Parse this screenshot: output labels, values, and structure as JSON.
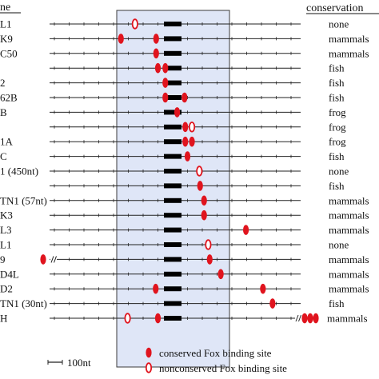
{
  "header": {
    "gene_label": "ne",
    "conservation_label": "conservation"
  },
  "rows": [
    {
      "gene": "L1",
      "conservation": "none",
      "sites": [
        {
          "pos": -2.55,
          "conserved": false
        }
      ]
    },
    {
      "gene": "K9",
      "conservation": "mammals",
      "sites": [
        {
          "pos": -3.5,
          "conserved": true
        },
        {
          "pos": -1.12,
          "conserved": true
        }
      ]
    },
    {
      "gene": "C50",
      "conservation": "mammals",
      "sites": [
        {
          "pos": -1.12,
          "conserved": true
        }
      ]
    },
    {
      "gene": "",
      "conservation": "fish",
      "sites": [
        {
          "pos": -1.0,
          "conserved": true
        },
        {
          "pos": -0.5,
          "conserved": true
        }
      ]
    },
    {
      "gene": "2",
      "conservation": "fish",
      "sites": [
        {
          "pos": -0.5,
          "conserved": true
        }
      ]
    },
    {
      "gene": "62B",
      "conservation": "fish",
      "sites": [
        {
          "pos": -0.5,
          "conserved": true
        },
        {
          "pos": 0.8,
          "conserved": true
        }
      ]
    },
    {
      "gene": "B",
      "conservation": "frog",
      "sites": [
        {
          "pos": 0.3,
          "conserved": true
        }
      ]
    },
    {
      "gene": "",
      "conservation": "frog",
      "sites": [
        {
          "pos": 0.85,
          "conserved": true
        },
        {
          "pos": 1.3,
          "conserved": false
        }
      ]
    },
    {
      "gene": "1A",
      "conservation": "frog",
      "sites": [
        {
          "pos": 0.85,
          "conserved": true
        },
        {
          "pos": 1.3,
          "conserved": true
        }
      ]
    },
    {
      "gene": "C",
      "conservation": "fish",
      "sites": [
        {
          "pos": 1.0,
          "conserved": true
        }
      ]
    },
    {
      "gene": "1 (450nt)",
      "conservation": "none",
      "sites": [
        {
          "pos": 1.8,
          "conserved": false
        }
      ]
    },
    {
      "gene": "",
      "conservation": "fish",
      "sites": [
        {
          "pos": 1.85,
          "conserved": true
        }
      ]
    },
    {
      "gene": "TN1 (57nt)",
      "conservation": "mammals",
      "sites": [
        {
          "pos": 2.12,
          "conserved": true
        }
      ]
    },
    {
      "gene": "K3",
      "conservation": "mammals",
      "sites": [
        {
          "pos": 2.12,
          "conserved": true
        }
      ]
    },
    {
      "gene": "L3",
      "conservation": "mammals",
      "sites": [
        {
          "pos": 4.95,
          "conserved": true
        }
      ]
    },
    {
      "gene": "L1",
      "conservation": "none",
      "sites": [
        {
          "pos": 2.4,
          "conserved": false
        }
      ]
    },
    {
      "gene": "9",
      "conservation": "mammals",
      "sites": [
        {
          "pos": 2.5,
          "conserved": true
        }
      ],
      "left_break": true
    },
    {
      "gene": "D4L",
      "conservation": "mammals",
      "sites": [
        {
          "pos": 3.25,
          "conserved": true
        }
      ]
    },
    {
      "gene": "D2",
      "conservation": "mammals",
      "sites": [
        {
          "pos": -1.15,
          "conserved": true
        },
        {
          "pos": 6.1,
          "conserved": true
        }
      ]
    },
    {
      "gene": "TN1 (30nt)",
      "conservation": "fish",
      "sites": [
        {
          "pos": 6.75,
          "conserved": true
        }
      ]
    },
    {
      "gene": "H",
      "conservation": "mammals",
      "sites": [
        {
          "pos": -3.05,
          "conserved": false
        },
        {
          "pos": -1.0,
          "conserved": true
        }
      ],
      "right_break": true
    }
  ],
  "scale": {
    "label": "100nt"
  },
  "legend": {
    "conserved_label": "conserved Fox binding site",
    "nonconserved_label": "nonconserved Fox binding site"
  },
  "colors": {
    "site": "#e0141e",
    "highlight": "#dfe6f7",
    "highlight_border": "#3b3b3b",
    "axis": "#222222"
  }
}
